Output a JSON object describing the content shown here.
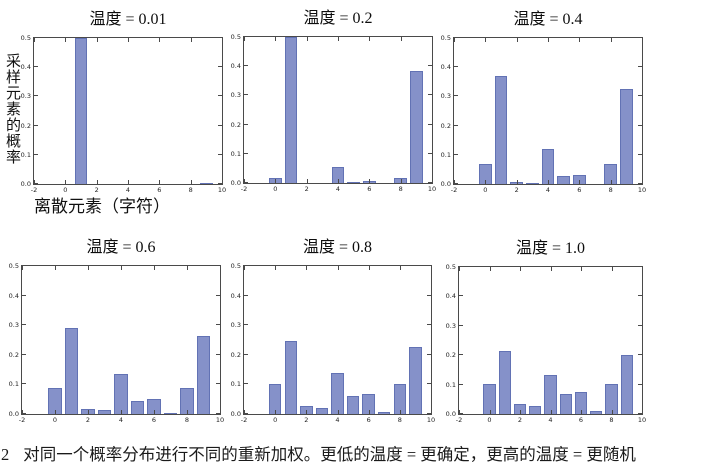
{
  "figure": {
    "ylabel": "采样元素的概率",
    "xlabel": "离散元素（字符）",
    "caption_number": "2",
    "caption_text": "对同一个概率分布进行不同的重新加权。更低的温度 = 更确定，更高的温度 = 更随机"
  },
  "colors": {
    "bar_fill": "#8591c9",
    "bar_edge": "#62x72b4",
    "bar_edge_fixed": "#6272b4",
    "axis_line": "#4a4a4a",
    "tick_text": "#222222",
    "title_text": "#0d0d0d"
  },
  "chart_data": [
    {
      "type": "bar",
      "title": "温度 = 0.01",
      "temperature": 0.01,
      "x": [
        0,
        1,
        2,
        3,
        4,
        5,
        6,
        7,
        8,
        9
      ],
      "values": [
        0,
        0.5,
        0,
        0,
        0,
        0,
        0,
        0,
        0,
        0.003
      ],
      "xlim": [
        -2,
        10
      ],
      "ylim": [
        0,
        0.5
      ],
      "xticks": [
        -2,
        0,
        2,
        4,
        6,
        8,
        10
      ],
      "yticks": [
        0.0,
        0.1,
        0.2,
        0.3,
        0.4,
        0.5
      ],
      "grid": false,
      "legend": false
    },
    {
      "type": "bar",
      "title": "温度 = 0.2",
      "temperature": 0.2,
      "x": [
        0,
        1,
        2,
        3,
        4,
        5,
        6,
        7,
        8,
        9
      ],
      "values": [
        0.018,
        0.5,
        0,
        0,
        0.054,
        0.004,
        0.007,
        0,
        0.018,
        0.385
      ],
      "xlim": [
        -2,
        10
      ],
      "ylim": [
        0,
        0.5
      ],
      "xticks": [
        -2,
        0,
        2,
        4,
        6,
        8,
        10
      ],
      "yticks": [
        0.0,
        0.1,
        0.2,
        0.3,
        0.4,
        0.5
      ],
      "grid": false,
      "legend": false
    },
    {
      "type": "bar",
      "title": "温度 = 0.4",
      "temperature": 0.4,
      "x": [
        0,
        1,
        2,
        3,
        4,
        5,
        6,
        7,
        8,
        9
      ],
      "values": [
        0.068,
        0.37,
        0.006,
        0.005,
        0.12,
        0.026,
        0.032,
        0,
        0.068,
        0.325
      ],
      "xlim": [
        -2,
        10
      ],
      "ylim": [
        0,
        0.5
      ],
      "xticks": [
        -2,
        0,
        2,
        4,
        6,
        8,
        10
      ],
      "yticks": [
        0.0,
        0.1,
        0.2,
        0.3,
        0.4,
        0.5
      ],
      "grid": false,
      "legend": false
    },
    {
      "type": "bar",
      "title": "温度 = 0.6",
      "temperature": 0.6,
      "x": [
        0,
        1,
        2,
        3,
        4,
        5,
        6,
        7,
        8,
        9
      ],
      "values": [
        0.088,
        0.29,
        0.016,
        0.012,
        0.135,
        0.045,
        0.05,
        0.004,
        0.088,
        0.263
      ],
      "xlim": [
        -2,
        10
      ],
      "ylim": [
        0,
        0.5
      ],
      "xticks": [
        -2,
        0,
        2,
        4,
        6,
        8,
        10
      ],
      "yticks": [
        0.0,
        0.1,
        0.2,
        0.3,
        0.4,
        0.5
      ],
      "grid": false,
      "legend": false
    },
    {
      "type": "bar",
      "title": "温度 = 0.8",
      "temperature": 0.8,
      "x": [
        0,
        1,
        2,
        3,
        4,
        5,
        6,
        7,
        8,
        9
      ],
      "values": [
        0.1,
        0.245,
        0.028,
        0.022,
        0.138,
        0.06,
        0.068,
        0.008,
        0.1,
        0.226
      ],
      "xlim": [
        -2,
        10
      ],
      "ylim": [
        0,
        0.5
      ],
      "xticks": [
        -2,
        0,
        2,
        4,
        6,
        8,
        10
      ],
      "yticks": [
        0.0,
        0.1,
        0.2,
        0.3,
        0.4,
        0.5
      ],
      "grid": false,
      "legend": false
    },
    {
      "type": "bar",
      "title": "温度 = 1.0",
      "temperature": 1.0,
      "x": [
        0,
        1,
        2,
        3,
        4,
        5,
        6,
        7,
        8,
        9
      ],
      "values": [
        0.103,
        0.213,
        0.035,
        0.027,
        0.134,
        0.069,
        0.075,
        0.01,
        0.103,
        0.202
      ],
      "xlim": [
        -2,
        10
      ],
      "ylim": [
        0,
        0.5
      ],
      "xticks": [
        -2,
        0,
        2,
        4,
        6,
        8,
        10
      ],
      "yticks": [
        0.0,
        0.1,
        0.2,
        0.3,
        0.4,
        0.5
      ],
      "grid": false,
      "legend": false
    }
  ]
}
